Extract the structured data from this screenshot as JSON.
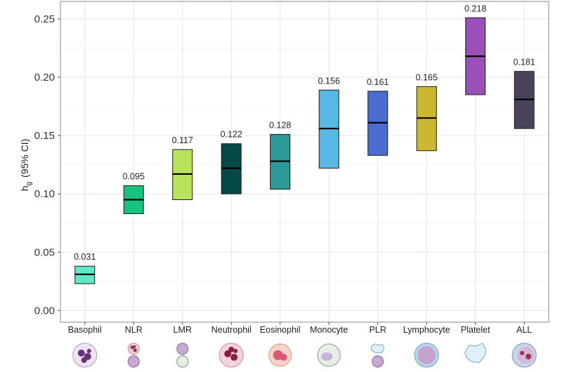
{
  "chart_data": {
    "type": "crossbar",
    "title": "",
    "xlabel": "",
    "ylabel": "h",
    "ylabel_subscript": "g",
    "ylabel_suffix": "(95% CI)",
    "ylim": [
      -0.01,
      0.265
    ],
    "yticks": [
      0.0,
      0.05,
      0.1,
      0.15,
      0.2,
      0.25
    ],
    "ytick_labels": [
      "0.00",
      "0.05",
      "0.10",
      "0.15",
      "0.20",
      "0.25"
    ],
    "grid": true,
    "categories": [
      "Basophil",
      "NLR",
      "LMR",
      "Neutrophil",
      "Eosinophil",
      "Monocyte",
      "PLR",
      "Lymphocyte",
      "Platelet",
      "ALL"
    ],
    "estimates": [
      0.031,
      0.095,
      0.117,
      0.122,
      0.128,
      0.156,
      0.161,
      0.165,
      0.218,
      0.181
    ],
    "labels": [
      "0.031",
      "0.095",
      "0.117",
      "0.122",
      "0.128",
      "0.156",
      "0.161",
      "0.165",
      "0.218",
      "0.181"
    ],
    "lower": [
      0.023,
      0.083,
      0.095,
      0.1,
      0.104,
      0.122,
      0.133,
      0.137,
      0.185,
      0.156
    ],
    "upper": [
      0.038,
      0.107,
      0.138,
      0.143,
      0.151,
      0.189,
      0.188,
      0.192,
      0.251,
      0.205
    ],
    "colors": [
      "#5ee8c8",
      "#17c47d",
      "#b8e35a",
      "#054a47",
      "#2e9797",
      "#57b8e6",
      "#4a6ccd",
      "#cbb832",
      "#9b4fb8",
      "#4a435a"
    ],
    "cell_icons": [
      "basophil-icon",
      "nlr-icon",
      "lmr-icon",
      "neutrophil-icon",
      "eosinophil-icon",
      "monocyte-icon",
      "plr-icon",
      "lymphocyte-icon",
      "platelet-icon",
      "all-cells-icon"
    ]
  }
}
